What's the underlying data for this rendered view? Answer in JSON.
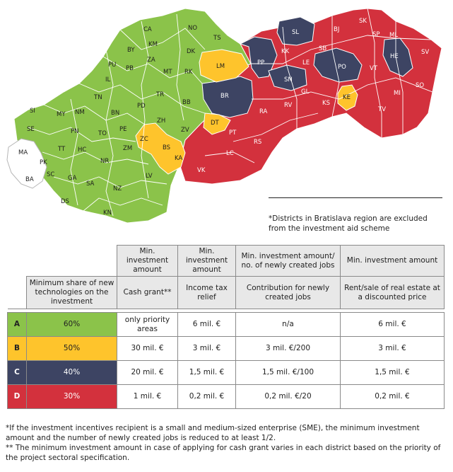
{
  "colors": {
    "A": "#8bc34a",
    "B": "#fec42c",
    "C": "#3d4463",
    "D": "#d3313d",
    "excluded": "#ffffff"
  },
  "districts": {
    "A": [
      "CA",
      "NO",
      "TS",
      "KM",
      "BY",
      "DK",
      "ZA",
      "PU",
      "PB",
      "MT",
      "RK",
      "IL",
      "TN",
      "TR",
      "BB",
      "SI",
      "MY",
      "NM",
      "BN",
      "PD",
      "ZH",
      "SE",
      "PN",
      "TO",
      "PE",
      "ZV",
      "TT",
      "HC",
      "NR",
      "ZM",
      "GA",
      "SA",
      "LV",
      "NZ",
      "DS",
      "KN"
    ],
    "B": [
      "LM",
      "ZC",
      "BS",
      "KA",
      "DT",
      "KE"
    ],
    "C": [
      "SL",
      "PP",
      "HE",
      "PO",
      "SN",
      "BR"
    ],
    "D": [
      "BJ",
      "SK",
      "SP",
      "ML",
      "KK",
      "SB",
      "SV",
      "LE",
      "VT",
      "GL",
      "RV",
      "KS",
      "MI",
      "SO",
      "RA",
      "TV",
      "PT",
      "RS",
      "LC",
      "VK"
    ],
    "excluded": [
      "MA",
      "PK",
      "SC",
      "BA"
    ]
  },
  "note": {
    "line1": "*Districts in Bratislava region are excluded",
    "line2": "from the investment aid scheme"
  },
  "table": {
    "header1": [
      "Min. investment amount",
      "Min. investment amount",
      "Min. investment amount/ no. of newly created jobs",
      "Min. investment amount"
    ],
    "share_header": "Minimum share of new technologies on the investment",
    "header2": [
      "Cash grant**",
      "Income tax relief",
      "Contribution for newly created jobs",
      "Rent/sale of real estate at a discounted price"
    ],
    "rows": [
      {
        "letter": "A",
        "share": "60%",
        "cash": "only priority areas",
        "tax": "6 mil. €",
        "jobs": "n/a",
        "rent": "6 mil. €"
      },
      {
        "letter": "B",
        "share": "50%",
        "cash": "30 mil. €",
        "tax": "3 mil. €",
        "jobs": "3 mil. €/200",
        "rent": "3 mil. €"
      },
      {
        "letter": "C",
        "share": "40%",
        "cash": "20 mil. €",
        "tax": "1,5 mil. €",
        "jobs": "1,5 mil. €/100",
        "rent": "1,5 mil. €"
      },
      {
        "letter": "D",
        "share": "30%",
        "cash": "1 mil. €",
        "tax": "0,2 mil. €",
        "jobs": "0,2 mil. €/20",
        "rent": "0,2 mil. €"
      }
    ]
  },
  "footnotes": {
    "f1": "*If the investment incentives recipient is a small and medium-sized enterprise (SME), the minimum investment amount and the number of newly created jobs is reduced to at least 1/2.",
    "f2": "** The minimum investment amount in case of applying for cash grant varies in each district based on the priority of the project sectoral specification."
  }
}
